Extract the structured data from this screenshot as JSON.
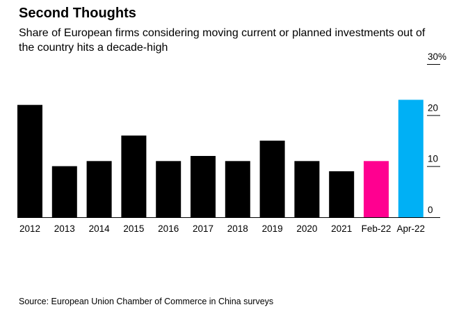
{
  "title": "Second Thoughts",
  "subtitle": "Share of European firms considering moving current or planned investments out of the country hits a decade-high",
  "source": "Source: European Union Chamber of Commerce in China surveys",
  "chart_data": {
    "type": "bar",
    "categories": [
      "2012",
      "2013",
      "2014",
      "2015",
      "2016",
      "2017",
      "2018",
      "2019",
      "2020",
      "2021",
      "Feb-22",
      "Apr-22"
    ],
    "values": [
      22,
      10,
      11,
      16,
      11,
      12,
      11,
      15,
      11,
      9,
      11,
      23
    ],
    "colors": [
      "#000000",
      "#000000",
      "#000000",
      "#000000",
      "#000000",
      "#000000",
      "#000000",
      "#000000",
      "#000000",
      "#000000",
      "#ff0090",
      "#00b0f5"
    ],
    "ylim": [
      0,
      30
    ],
    "yticks": [
      0,
      10,
      20,
      30
    ],
    "ytick_labels": [
      "0",
      "10",
      "20",
      "30%"
    ],
    "axis_position": "right",
    "grid": false,
    "xlabel": "",
    "ylabel": ""
  }
}
